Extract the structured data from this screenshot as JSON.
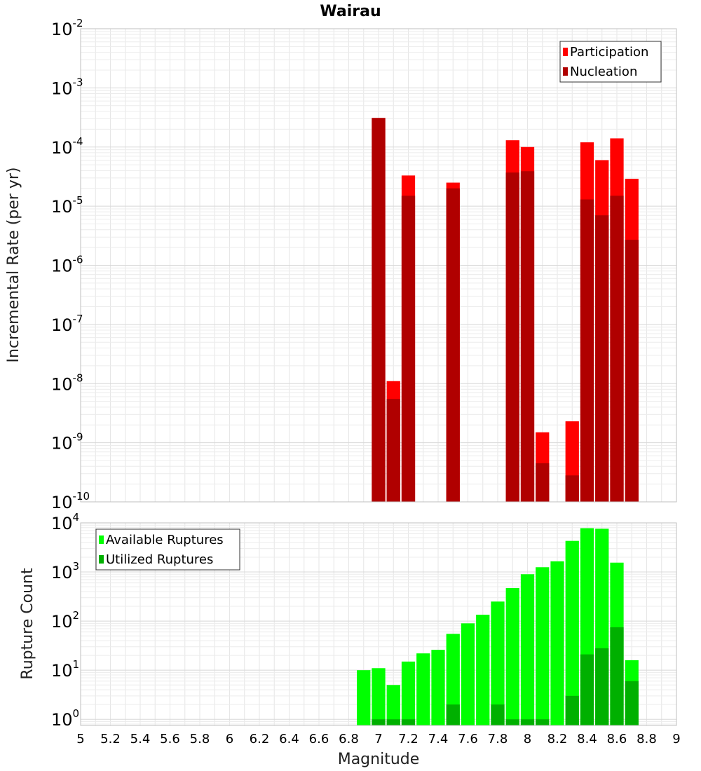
{
  "chart_data": [
    {
      "type": "bar",
      "title": "Wairau",
      "xlabel": "Magnitude",
      "ylabel": "Incremental Rate (per yr)",
      "yscale": "log",
      "ylim": [
        1e-10,
        0.01
      ],
      "ytick_base": "10",
      "ytick_exponents": [
        "-10",
        "-9",
        "-8",
        "-7",
        "-6",
        "-5",
        "-4",
        "-3",
        "-2"
      ],
      "legend_position": "top-right",
      "grid": true,
      "bin_width": 0.1,
      "series": [
        {
          "name": "Participation",
          "color": "#ff0000",
          "points": [
            [
              7.0,
              0.00031
            ],
            [
              7.1,
              1.1e-08
            ],
            [
              7.2,
              3.3e-05
            ],
            [
              7.5,
              2.5e-05
            ],
            [
              7.9,
              0.00013
            ],
            [
              8.0,
              0.0001
            ],
            [
              8.1,
              1.5e-09
            ],
            [
              8.3,
              2.3e-09
            ],
            [
              8.4,
              0.00012
            ],
            [
              8.5,
              6e-05
            ],
            [
              8.6,
              0.00014
            ],
            [
              8.7,
              2.9e-05
            ]
          ]
        },
        {
          "name": "Nucleation",
          "color": "#b00000",
          "points": [
            [
              7.0,
              0.00031
            ],
            [
              7.1,
              5.5e-09
            ],
            [
              7.2,
              1.5e-05
            ],
            [
              7.5,
              2e-05
            ],
            [
              7.9,
              3.7e-05
            ],
            [
              8.0,
              3.9e-05
            ],
            [
              8.1,
              4.5e-10
            ],
            [
              8.3,
              2.8e-10
            ],
            [
              8.4,
              1.3e-05
            ],
            [
              8.5,
              7e-06
            ],
            [
              8.6,
              1.5e-05
            ],
            [
              8.7,
              2.7e-06
            ]
          ]
        }
      ]
    },
    {
      "type": "bar",
      "xlabel": "Magnitude",
      "ylabel": "Rupture Count",
      "yscale": "log",
      "ylim": [
        0.75,
        10000
      ],
      "ytick_base": "10",
      "ytick_exponents": [
        "0",
        "1",
        "2",
        "3",
        "4"
      ],
      "legend_position": "top-left",
      "grid": true,
      "xlim": [
        5,
        9
      ],
      "xticks": [
        "5",
        "5.2",
        "5.4",
        "5.6",
        "5.8",
        "6",
        "6.2",
        "6.4",
        "6.6",
        "6.8",
        "7",
        "7.2",
        "7.4",
        "7.6",
        "7.8",
        "8",
        "8.2",
        "8.4",
        "8.6",
        "8.8",
        "9"
      ],
      "bin_width": 0.1,
      "series": [
        {
          "name": "Available Ruptures",
          "color": "#00ff00",
          "points": [
            [
              6.9,
              10
            ],
            [
              7.0,
              11
            ],
            [
              7.1,
              5
            ],
            [
              7.2,
              15
            ],
            [
              7.3,
              22
            ],
            [
              7.4,
              26
            ],
            [
              7.5,
              55
            ],
            [
              7.6,
              90
            ],
            [
              7.7,
              135
            ],
            [
              7.8,
              250
            ],
            [
              7.9,
              470
            ],
            [
              8.0,
              900
            ],
            [
              8.1,
              1250
            ],
            [
              8.2,
              1650
            ],
            [
              8.3,
              4300
            ],
            [
              8.4,
              7800
            ],
            [
              8.5,
              7600
            ],
            [
              8.6,
              1550
            ],
            [
              8.7,
              16
            ]
          ]
        },
        {
          "name": "Utilized Ruptures",
          "color": "#00b000",
          "points": [
            [
              7.0,
              1
            ],
            [
              7.1,
              1
            ],
            [
              7.2,
              1
            ],
            [
              7.5,
              2
            ],
            [
              7.8,
              2
            ],
            [
              7.9,
              1
            ],
            [
              8.0,
              1
            ],
            [
              8.1,
              1
            ],
            [
              8.3,
              3
            ],
            [
              8.4,
              21
            ],
            [
              8.5,
              28
            ],
            [
              8.6,
              75
            ],
            [
              8.7,
              6
            ]
          ]
        }
      ]
    }
  ]
}
